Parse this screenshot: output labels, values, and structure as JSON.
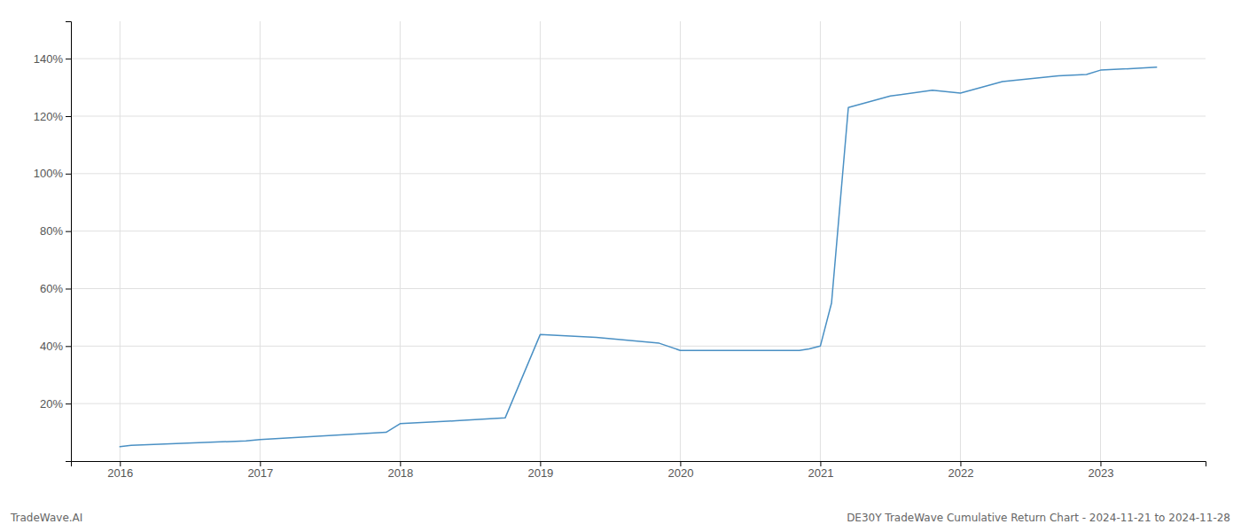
{
  "chart_data": {
    "type": "line",
    "x": [
      2016.0,
      2016.08,
      2016.9,
      2017.0,
      2017.9,
      2018.0,
      2018.4,
      2018.75,
      2019.0,
      2019.4,
      2019.85,
      2020.0,
      2020.85,
      2020.92,
      2021.0,
      2021.08,
      2021.2,
      2021.5,
      2021.8,
      2022.0,
      2022.3,
      2022.7,
      2022.9,
      2023.0,
      2023.4
    ],
    "values": [
      5,
      5.5,
      7,
      7.5,
      10,
      13,
      14,
      15,
      44,
      43,
      41,
      38.5,
      38.5,
      39,
      40,
      55,
      123,
      127,
      129,
      128,
      132,
      134,
      134.5,
      136,
      137
    ],
    "color": "#4a90c4",
    "xlim": [
      2015.65,
      2023.75
    ],
    "ylim": [
      0,
      153
    ],
    "xticks": [
      2016,
      2017,
      2018,
      2019,
      2020,
      2021,
      2022,
      2023
    ],
    "yticks": [
      {
        "value": 20,
        "label": "20%"
      },
      {
        "value": 40,
        "label": "40%"
      },
      {
        "value": 60,
        "label": "60%"
      },
      {
        "value": 80,
        "label": "80%"
      },
      {
        "value": 100,
        "label": "100%"
      },
      {
        "value": 120,
        "label": "120%"
      },
      {
        "value": 140,
        "label": "140%"
      }
    ],
    "grid": true,
    "annotations": [
      "TradeWave.AI",
      "DE30Y TradeWave Cumulative Return Chart - 2024-11-21 to 2024-11-28"
    ]
  }
}
